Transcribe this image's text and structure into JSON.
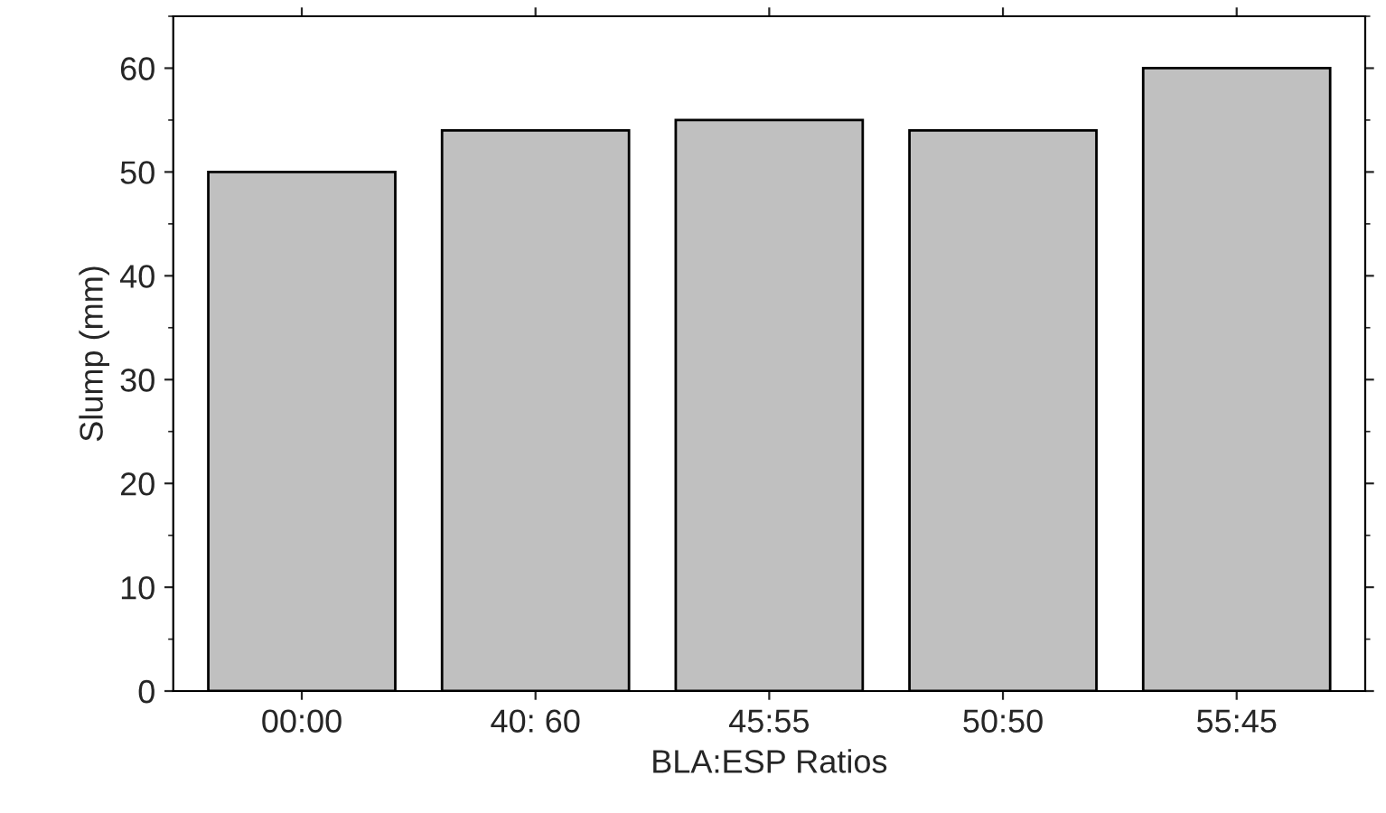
{
  "chart_data": {
    "type": "bar",
    "xlabel": "BLA:ESP Ratios",
    "ylabel": "Slump (mm)",
    "categories": [
      "00:00",
      "40: 60",
      "45:55",
      "50:50",
      "55:45"
    ],
    "values": [
      50,
      54,
      55,
      54,
      60
    ],
    "color": "#c0c0c0",
    "ylim": [
      0,
      65
    ],
    "yticks": [
      0,
      10,
      20,
      30,
      40,
      50,
      60
    ],
    "grid": false
  }
}
